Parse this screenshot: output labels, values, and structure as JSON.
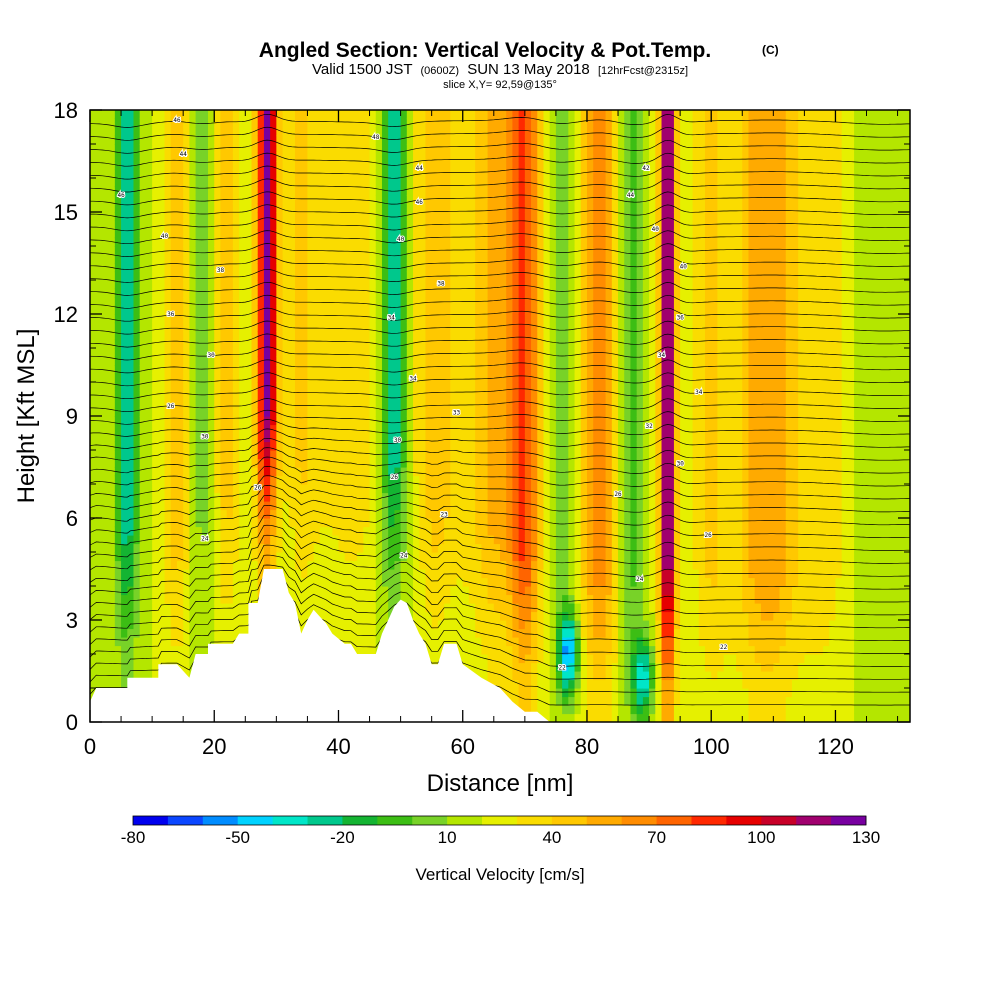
{
  "header": {
    "title": "Angled Section: Vertical Velocity & Pot.Temp.",
    "title_unit": "(C)",
    "valid_prefix": "Valid 1500 JST",
    "valid_utc": "(0600Z)",
    "valid_date": "SUN 13 May 2018",
    "forecast_info": "[12hrFcst@2315z]",
    "slice_info": "slice X,Y= 92,59@135°"
  },
  "chart_data": {
    "type": "heatmap",
    "xlabel": "Distance [nm]",
    "ylabel": "Height [Kft MSL]",
    "xlim": [
      0,
      132
    ],
    "ylim": [
      0,
      18
    ],
    "x_ticks": [
      0,
      20,
      40,
      60,
      80,
      100,
      120
    ],
    "y_ticks": [
      0,
      3,
      6,
      9,
      12,
      15,
      18
    ],
    "background_w": 20,
    "velocity_columns": [
      {
        "x": 6,
        "amplitude": -45,
        "width": 1.8
      },
      {
        "x": 14,
        "amplitude": 30,
        "width": 2.2
      },
      {
        "x": 18,
        "amplitude": -15,
        "width": 2.5
      },
      {
        "x": 22,
        "amplitude": 25,
        "width": 2.2
      },
      {
        "x": 28.5,
        "amplitude": 100,
        "width": 1.6
      },
      {
        "x": 34,
        "amplitude": 20,
        "width": 3.5
      },
      {
        "x": 42,
        "amplitude": 15,
        "width": 5
      },
      {
        "x": 49,
        "amplitude": -50,
        "width": 1.9
      },
      {
        "x": 56,
        "amplitude": 25,
        "width": 4
      },
      {
        "x": 65,
        "amplitude": 30,
        "width": 4
      },
      {
        "x": 70,
        "amplitude": 55,
        "width": 2.5
      },
      {
        "x": 76,
        "amplitude": -15,
        "width": 2
      },
      {
        "x": 82,
        "amplitude": 45,
        "width": 3
      },
      {
        "x": 87,
        "amplitude": -25,
        "width": 1.8
      },
      {
        "x": 93,
        "amplitude": 105,
        "width": 1.3
      },
      {
        "x": 100,
        "amplitude": 20,
        "width": 3
      },
      {
        "x": 109,
        "amplitude": 40,
        "width": 5
      },
      {
        "x": 118,
        "amplitude": 15,
        "width": 4
      },
      {
        "x": 127,
        "amplitude": -10,
        "width": 3
      }
    ],
    "downdraft_spots": [
      {
        "x": 77,
        "h": 2,
        "amplitude": -70
      },
      {
        "x": 89,
        "h": 1.3,
        "amplitude": -55
      }
    ],
    "terrain": [
      {
        "x": 0,
        "h": 0.6
      },
      {
        "x": 1,
        "h": 1
      },
      {
        "x": 6,
        "h": 1
      },
      {
        "x": 6,
        "h": 1.3
      },
      {
        "x": 11,
        "h": 1.3
      },
      {
        "x": 11,
        "h": 1.7
      },
      {
        "x": 14,
        "h": 1.7
      },
      {
        "x": 16,
        "h": 1.3
      },
      {
        "x": 17,
        "h": 2
      },
      {
        "x": 19,
        "h": 2
      },
      {
        "x": 19,
        "h": 2.3
      },
      {
        "x": 23,
        "h": 2.3
      },
      {
        "x": 24,
        "h": 2.6
      },
      {
        "x": 25.5,
        "h": 2.6
      },
      {
        "x": 25.5,
        "h": 3.5
      },
      {
        "x": 27,
        "h": 3.5
      },
      {
        "x": 28,
        "h": 4.5
      },
      {
        "x": 31,
        "h": 4.5
      },
      {
        "x": 32,
        "h": 3.8
      },
      {
        "x": 33,
        "h": 3.5
      },
      {
        "x": 34,
        "h": 2.6
      },
      {
        "x": 35,
        "h": 3
      },
      {
        "x": 36,
        "h": 3.3
      },
      {
        "x": 37,
        "h": 3.1
      },
      {
        "x": 38,
        "h": 2.9
      },
      {
        "x": 39,
        "h": 2.6
      },
      {
        "x": 41,
        "h": 2.3
      },
      {
        "x": 42,
        "h": 2.3
      },
      {
        "x": 43,
        "h": 2
      },
      {
        "x": 46,
        "h": 2
      },
      {
        "x": 47,
        "h": 2.6
      },
      {
        "x": 48,
        "h": 3
      },
      {
        "x": 49,
        "h": 3.4
      },
      {
        "x": 50,
        "h": 3.6
      },
      {
        "x": 51,
        "h": 3.5
      },
      {
        "x": 52,
        "h": 3
      },
      {
        "x": 53,
        "h": 2.6
      },
      {
        "x": 54,
        "h": 2.3
      },
      {
        "x": 55,
        "h": 1.7
      },
      {
        "x": 56,
        "h": 1.7
      },
      {
        "x": 57,
        "h": 2.3
      },
      {
        "x": 59,
        "h": 2.3
      },
      {
        "x": 60,
        "h": 1.7
      },
      {
        "x": 63,
        "h": 1.3
      },
      {
        "x": 66,
        "h": 1
      },
      {
        "x": 68,
        "h": 0.6
      },
      {
        "x": 70,
        "h": 0.3
      },
      {
        "x": 72,
        "h": 0.3
      },
      {
        "x": 74,
        "h": 0
      },
      {
        "x": 132,
        "h": 0
      }
    ],
    "theta_contours": {
      "h_start": 0.5,
      "h_step": 0.38,
      "count": 46,
      "labels": [
        {
          "x": 14,
          "h": 17.7,
          "text": "46"
        },
        {
          "x": 15,
          "h": 16.7,
          "text": "44"
        },
        {
          "x": 5,
          "h": 15.5,
          "text": "46"
        },
        {
          "x": 12,
          "h": 14.3,
          "text": "40"
        },
        {
          "x": 21,
          "h": 13.3,
          "text": "38"
        },
        {
          "x": 13,
          "h": 12,
          "text": "36"
        },
        {
          "x": 19.5,
          "h": 10.8,
          "text": "30"
        },
        {
          "x": 13,
          "h": 9.3,
          "text": "26"
        },
        {
          "x": 18.5,
          "h": 8.4,
          "text": "30"
        },
        {
          "x": 27,
          "h": 6.9,
          "text": "26"
        },
        {
          "x": 18.5,
          "h": 5.4,
          "text": "24"
        },
        {
          "x": 46,
          "h": 17.2,
          "text": "48"
        },
        {
          "x": 53,
          "h": 16.3,
          "text": "44"
        },
        {
          "x": 53,
          "h": 15.3,
          "text": "46"
        },
        {
          "x": 50,
          "h": 14.2,
          "text": "40"
        },
        {
          "x": 56.5,
          "h": 12.9,
          "text": "38"
        },
        {
          "x": 48.5,
          "h": 11.9,
          "text": "34"
        },
        {
          "x": 52,
          "h": 10.1,
          "text": "34"
        },
        {
          "x": 59,
          "h": 9.1,
          "text": "33"
        },
        {
          "x": 49.5,
          "h": 8.3,
          "text": "30"
        },
        {
          "x": 49,
          "h": 7.2,
          "text": "26"
        },
        {
          "x": 57,
          "h": 6.1,
          "text": "23"
        },
        {
          "x": 50.5,
          "h": 4.9,
          "text": "24"
        },
        {
          "x": 89.5,
          "h": 16.3,
          "text": "42"
        },
        {
          "x": 87,
          "h": 15.5,
          "text": "44"
        },
        {
          "x": 91,
          "h": 14.5,
          "text": "40"
        },
        {
          "x": 95.5,
          "h": 13.4,
          "text": "40"
        },
        {
          "x": 95,
          "h": 11.9,
          "text": "36"
        },
        {
          "x": 92,
          "h": 10.8,
          "text": "34"
        },
        {
          "x": 98,
          "h": 9.7,
          "text": "34"
        },
        {
          "x": 90,
          "h": 8.7,
          "text": "32"
        },
        {
          "x": 95,
          "h": 7.6,
          "text": "30"
        },
        {
          "x": 85,
          "h": 6.7,
          "text": "26"
        },
        {
          "x": 99.5,
          "h": 5.5,
          "text": "26"
        },
        {
          "x": 88.5,
          "h": 4.2,
          "text": "24"
        },
        {
          "x": 102,
          "h": 2.2,
          "text": "22"
        },
        {
          "x": 76,
          "h": 1.6,
          "text": "22"
        }
      ]
    }
  },
  "colorbar": {
    "title": "Vertical Velocity [cm/s]",
    "min": -80,
    "max": 130,
    "step": 10,
    "labels": [
      "-80",
      "-50",
      "-20",
      "10",
      "40",
      "70",
      "100",
      "130"
    ],
    "colors": [
      "#0000ee",
      "#0a46ff",
      "#008cff",
      "#00d2ff",
      "#00e6c8",
      "#00c88c",
      "#14b432",
      "#3cbe14",
      "#78d228",
      "#b4e600",
      "#e6f000",
      "#fadc00",
      "#ffc800",
      "#ffaa00",
      "#ff8c00",
      "#ff6400",
      "#ff2800",
      "#e60000",
      "#c80028",
      "#a0006e",
      "#7800a0"
    ]
  }
}
